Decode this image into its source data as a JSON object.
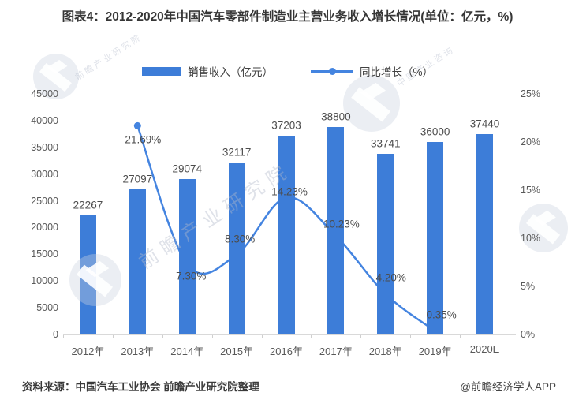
{
  "title": "图表4：2012-2020年中国汽车零部件制造业主营业务收入增长情况(单位：亿元，%)",
  "legend": {
    "bar_label": "销售收入（亿元）",
    "line_label": "同比增长（%）"
  },
  "chart_data": {
    "type": "combo",
    "categories": [
      "2012年",
      "2013年",
      "2014年",
      "2015年",
      "2016年",
      "2017年",
      "2018年",
      "2019年",
      "2020E"
    ],
    "series": [
      {
        "name": "销售收入（亿元）",
        "type": "bar",
        "axis": "left",
        "values": [
          22267,
          27097,
          29074,
          32117,
          37203,
          38800,
          33741,
          36000,
          37440
        ]
      },
      {
        "name": "同比增长（%）",
        "type": "line",
        "axis": "right",
        "categories": [
          "2013年",
          "2014年",
          "2015年",
          "2016年",
          "2017年",
          "2018年",
          "2019年"
        ],
        "values": [
          21.69,
          7.3,
          8.3,
          14.23,
          10.23,
          4.2,
          0.35
        ]
      }
    ],
    "left_axis": {
      "min": 0,
      "max": 45000,
      "step": 5000,
      "ticks": [
        "45000",
        "40000",
        "35000",
        "30000",
        "25000",
        "20000",
        "15000",
        "10000",
        "5000",
        "0"
      ]
    },
    "right_axis": {
      "min": 0,
      "max": 25,
      "step": 5,
      "ticks": [
        "25%",
        "20%",
        "15%",
        "10%",
        "5%",
        "0%"
      ]
    },
    "grid": false,
    "legend_position": "top"
  },
  "colors": {
    "bar": "#3D7DD8",
    "line": "#4484E0",
    "axis_text": "#595959",
    "label_text": "#4c4c4c",
    "title_text": "#363636",
    "axis_line": "#d9d9d9"
  },
  "footer": {
    "source": "资料来源：中国汽车工业协会 前瞻产业研究院整理",
    "credit": "@前瞻经济学人APP"
  },
  "watermark": {
    "brand": "前瞻产业研究院",
    "tagline": "中国产业咨询"
  }
}
